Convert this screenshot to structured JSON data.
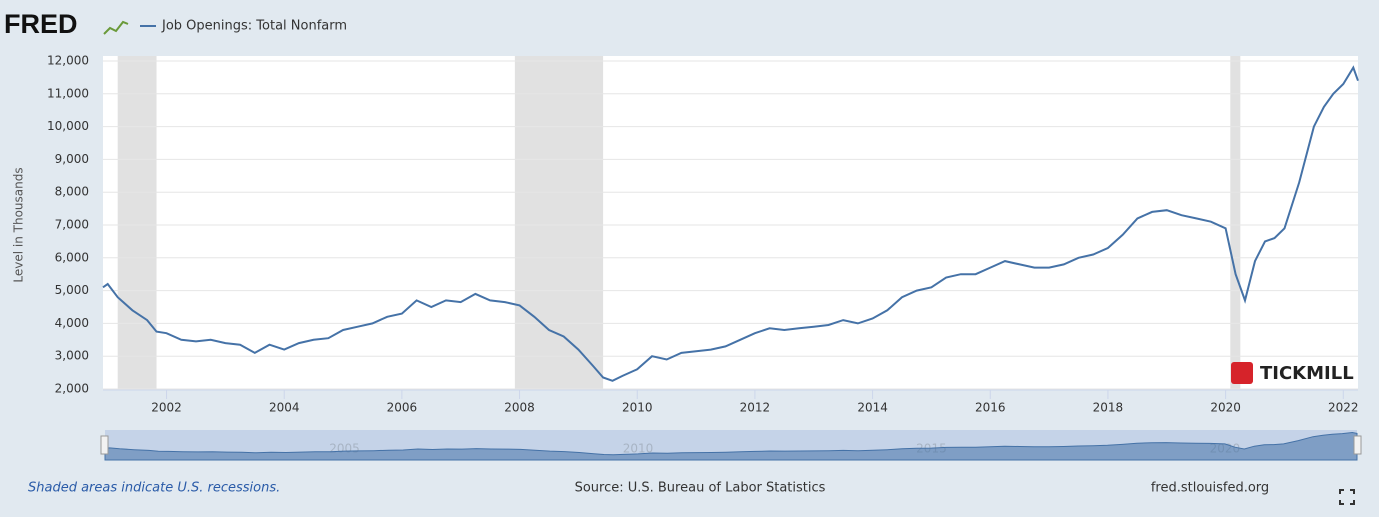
{
  "header": {
    "logo": "FRED",
    "legend_label": "Job Openings: Total Nonfarm"
  },
  "chart_data": {
    "type": "line",
    "y_label": "Level in Thousands",
    "watermark": "TICKMILL",
    "x": [
      2000.92,
      2001.0,
      2001.17,
      2001.42,
      2001.67,
      2001.83,
      2002.0,
      2002.25,
      2002.5,
      2002.75,
      2003.0,
      2003.25,
      2003.5,
      2003.75,
      2004.0,
      2004.25,
      2004.5,
      2004.75,
      2005.0,
      2005.25,
      2005.5,
      2005.75,
      2006.0,
      2006.25,
      2006.5,
      2006.75,
      2007.0,
      2007.25,
      2007.5,
      2007.75,
      2008.0,
      2008.25,
      2008.5,
      2008.75,
      2009.0,
      2009.25,
      2009.42,
      2009.58,
      2009.75,
      2010.0,
      2010.25,
      2010.5,
      2010.75,
      2011.0,
      2011.25,
      2011.5,
      2011.75,
      2012.0,
      2012.25,
      2012.5,
      2012.75,
      2013.0,
      2013.25,
      2013.5,
      2013.75,
      2014.0,
      2014.25,
      2014.5,
      2014.75,
      2015.0,
      2015.25,
      2015.5,
      2015.75,
      2016.0,
      2016.25,
      2016.5,
      2016.75,
      2017.0,
      2017.25,
      2017.5,
      2017.75,
      2018.0,
      2018.25,
      2018.5,
      2018.75,
      2019.0,
      2019.25,
      2019.5,
      2019.75,
      2020.0,
      2020.17,
      2020.33,
      2020.5,
      2020.67,
      2020.83,
      2021.0,
      2021.25,
      2021.5,
      2021.67,
      2021.83,
      2022.0,
      2022.17,
      2022.25
    ],
    "series": [
      {
        "name": "Job Openings: Total Nonfarm",
        "color": "#4572a7",
        "values": [
          5100,
          5200,
          4800,
          4400,
          4100,
          3750,
          3700,
          3500,
          3450,
          3500,
          3400,
          3350,
          3100,
          3350,
          3200,
          3400,
          3500,
          3550,
          3800,
          3900,
          4000,
          4200,
          4300,
          4700,
          4500,
          4700,
          4650,
          4900,
          4700,
          4650,
          4550,
          4200,
          3800,
          3600,
          3200,
          2700,
          2350,
          2250,
          2400,
          2600,
          3000,
          2900,
          3100,
          3150,
          3200,
          3300,
          3500,
          3700,
          3850,
          3800,
          3850,
          3900,
          3950,
          4100,
          4000,
          4150,
          4400,
          4800,
          5000,
          5100,
          5400,
          5500,
          5500,
          5700,
          5900,
          5800,
          5700,
          5700,
          5800,
          6000,
          6100,
          6300,
          6700,
          7200,
          7400,
          7450,
          7300,
          7200,
          7100,
          6900,
          5500,
          4700,
          5900,
          6500,
          6600,
          6900,
          8300,
          10000,
          10600,
          11000,
          11300,
          11800,
          11400
        ]
      }
    ],
    "recessions": [
      [
        2001.17,
        2001.83
      ],
      [
        2007.92,
        2009.42
      ],
      [
        2020.08,
        2020.25
      ]
    ],
    "recession_color": "#e1e1e1",
    "xlim": [
      2000.92,
      2022.25
    ],
    "ylim": [
      2000,
      12000
    ],
    "xticks": [
      2002,
      2004,
      2006,
      2008,
      2010,
      2012,
      2014,
      2016,
      2018,
      2020,
      2022
    ],
    "yticks": [
      {
        "value": 2000,
        "label": "2,000"
      },
      {
        "value": 3000,
        "label": "3,000"
      },
      {
        "value": 4000,
        "label": "4,000"
      },
      {
        "value": 5000,
        "label": "5,000"
      },
      {
        "value": 6000,
        "label": "6,000"
      },
      {
        "value": 7000,
        "label": "7,000"
      },
      {
        "value": 8000,
        "label": "8,000"
      },
      {
        "value": 9000,
        "label": "9,000"
      },
      {
        "value": 10000,
        "label": "10,000"
      },
      {
        "value": 11000,
        "label": "11,000"
      },
      {
        "value": 12000,
        "label": "12,000"
      }
    ],
    "grid": true,
    "navigator_ticks": [
      2005,
      2010,
      2015,
      2020
    ]
  },
  "footer": {
    "note": "Shaded areas indicate U.S. recessions.",
    "source": "Source: U.S. Bureau of Labor Statistics",
    "site": "fred.stlouisfed.org"
  }
}
